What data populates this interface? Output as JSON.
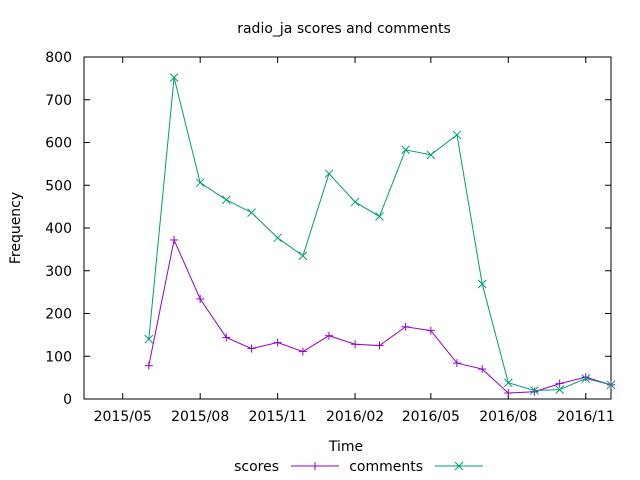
{
  "chart_data": {
    "type": "line",
    "title": "radio_ja scores and comments",
    "xlabel": "Time",
    "ylabel": "Frequency",
    "ylim": [
      0,
      800
    ],
    "yticks": [
      0,
      100,
      200,
      300,
      400,
      500,
      600,
      700,
      800
    ],
    "xlim": [
      "2015-03-16",
      "2016-12-01"
    ],
    "xticks": [
      {
        "date": "2015-05-01",
        "label": "2015/05"
      },
      {
        "date": "2015-08-01",
        "label": "2015/08"
      },
      {
        "date": "2015-11-01",
        "label": "2015/11"
      },
      {
        "date": "2016-02-01",
        "label": "2016/02"
      },
      {
        "date": "2016-05-01",
        "label": "2016/05"
      },
      {
        "date": "2016-08-01",
        "label": "2016/08"
      },
      {
        "date": "2016-11-01",
        "label": "2016/11"
      }
    ],
    "legend_position": "bottom",
    "grid": false,
    "x": [
      "2015-06-01",
      "2015-07-01",
      "2015-08-01",
      "2015-09-01",
      "2015-10-01",
      "2015-11-01",
      "2015-12-01",
      "2016-01-01",
      "2016-02-01",
      "2016-03-01",
      "2016-04-01",
      "2016-05-01",
      "2016-06-01",
      "2016-07-01",
      "2016-08-01",
      "2016-09-01",
      "2016-10-01",
      "2016-11-01",
      "2016-12-01"
    ],
    "series": [
      {
        "name": "scores",
        "color": "#9400d3",
        "marker": "plus",
        "values": [
          78,
          372,
          234,
          144,
          118,
          132,
          111,
          148,
          128,
          125,
          169,
          160,
          84,
          70,
          14,
          17,
          36,
          51,
          33
        ]
      },
      {
        "name": "comments",
        "color": "#009e73",
        "marker": "cross",
        "values": [
          140,
          752,
          506,
          466,
          436,
          377,
          335,
          527,
          461,
          427,
          583,
          571,
          618,
          269,
          38,
          20,
          22,
          48,
          33
        ]
      }
    ]
  }
}
